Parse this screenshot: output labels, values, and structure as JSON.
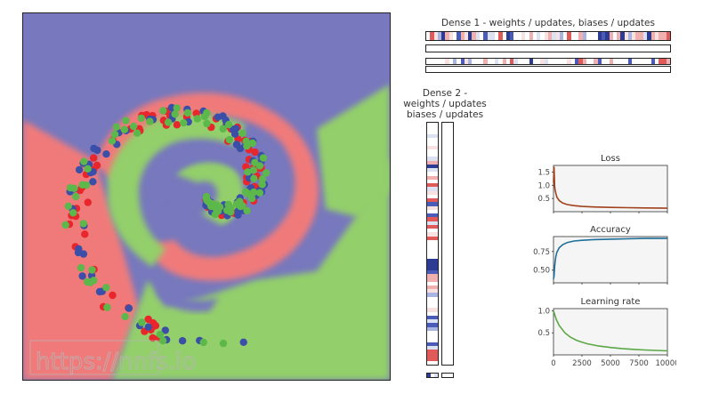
{
  "watermark": "https://nnfs.io",
  "colors": {
    "class0": "#e8262c",
    "class1": "#3b4ea8",
    "class2": "#5cb84a",
    "region0": "#f07a7a",
    "region1": "#7778bd",
    "region2": "#93cf6a",
    "loss_line": "#a0411c",
    "acc_line": "#1f6f9a",
    "lr_line": "#5aa844",
    "panel_bg": "#f5f5f5"
  },
  "dense1": {
    "title": "Dense 1 - weights / updates, biases / updates"
  },
  "dense2": {
    "title_line1": "Dense 2 -",
    "title_line2": "weights / updates",
    "title_line3": "biases / updates"
  },
  "chart_data": [
    {
      "type": "scatter",
      "title": "",
      "xlim": [
        -1,
        1
      ],
      "ylim": [
        -1,
        1
      ],
      "background": "decision-regions",
      "series": [
        {
          "class": 0,
          "color": "#e8262c",
          "pattern": "spiral arm 1"
        },
        {
          "class": 1,
          "color": "#3b4ea8",
          "pattern": "spiral arm 2"
        },
        {
          "class": 2,
          "color": "#5cb84a",
          "pattern": "spiral arm 3"
        }
      ]
    },
    {
      "type": "line",
      "title": "Loss",
      "xlim": [
        0,
        10000
      ],
      "ylim": [
        0,
        1.75
      ],
      "yticks": [
        "1.5",
        "1.0",
        "0.5"
      ],
      "yticks_values": [
        1.5,
        1.0,
        0.5
      ],
      "x": [
        0,
        50,
        100,
        150,
        200,
        300,
        500,
        800,
        1200,
        1800,
        2500,
        3500,
        5000,
        6500,
        8000,
        10000
      ],
      "y": [
        1.1,
        1.7,
        0.95,
        0.8,
        0.7,
        0.55,
        0.42,
        0.33,
        0.27,
        0.23,
        0.2,
        0.18,
        0.16,
        0.15,
        0.14,
        0.13
      ]
    },
    {
      "type": "line",
      "title": "Accuracy",
      "xlim": [
        0,
        10000
      ],
      "ylim": [
        0.33,
        0.95
      ],
      "yticks": [
        "0.75",
        "0.50"
      ],
      "yticks_values": [
        0.75,
        0.5
      ],
      "x": [
        0,
        50,
        100,
        150,
        200,
        300,
        500,
        800,
        1200,
        1800,
        2500,
        3500,
        5000,
        6500,
        8000,
        10000
      ],
      "y": [
        0.38,
        0.42,
        0.55,
        0.62,
        0.68,
        0.74,
        0.8,
        0.84,
        0.87,
        0.89,
        0.9,
        0.91,
        0.915,
        0.92,
        0.925,
        0.925
      ]
    },
    {
      "type": "line",
      "title": "Learning rate",
      "xlim": [
        0,
        10000
      ],
      "ylim": [
        0.0,
        1.05
      ],
      "yticks": [
        "1.0",
        "0.5"
      ],
      "yticks_values": [
        1.0,
        0.5
      ],
      "xticks": [
        "0",
        "2500",
        "5000",
        "7500",
        "10000"
      ],
      "xticks_values": [
        0,
        2500,
        5000,
        7500,
        10000
      ],
      "x": [
        0,
        250,
        500,
        1000,
        1500,
        2000,
        2500,
        3000,
        4000,
        5000,
        6000,
        7000,
        8000,
        9000,
        10000
      ],
      "y": [
        1.0,
        0.8,
        0.667,
        0.5,
        0.4,
        0.333,
        0.286,
        0.25,
        0.2,
        0.167,
        0.143,
        0.125,
        0.111,
        0.1,
        0.091
      ]
    }
  ]
}
